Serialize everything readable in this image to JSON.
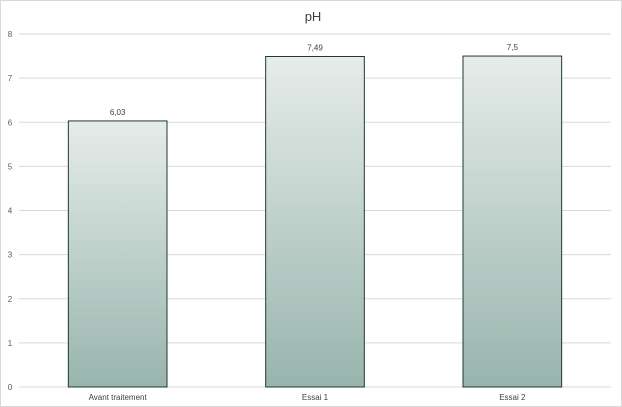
{
  "chart_data": {
    "type": "bar",
    "title": "pH",
    "categories": [
      "Avant traitement",
      "Essai 1",
      "Essai 2"
    ],
    "values": [
      6.03,
      7.49,
      7.5
    ],
    "data_labels": [
      "6,03",
      "7,49",
      "7,5"
    ],
    "yticks": [
      0,
      1,
      2,
      3,
      4,
      5,
      6,
      7,
      8
    ],
    "ylim": [
      0,
      8
    ],
    "xlabel": "",
    "ylabel": "",
    "grid": true,
    "legend": "none",
    "bar_gradient": {
      "top": "#e6ecea",
      "bottom": "#98b5ad"
    },
    "bar_border_color": "#1f3a30"
  }
}
